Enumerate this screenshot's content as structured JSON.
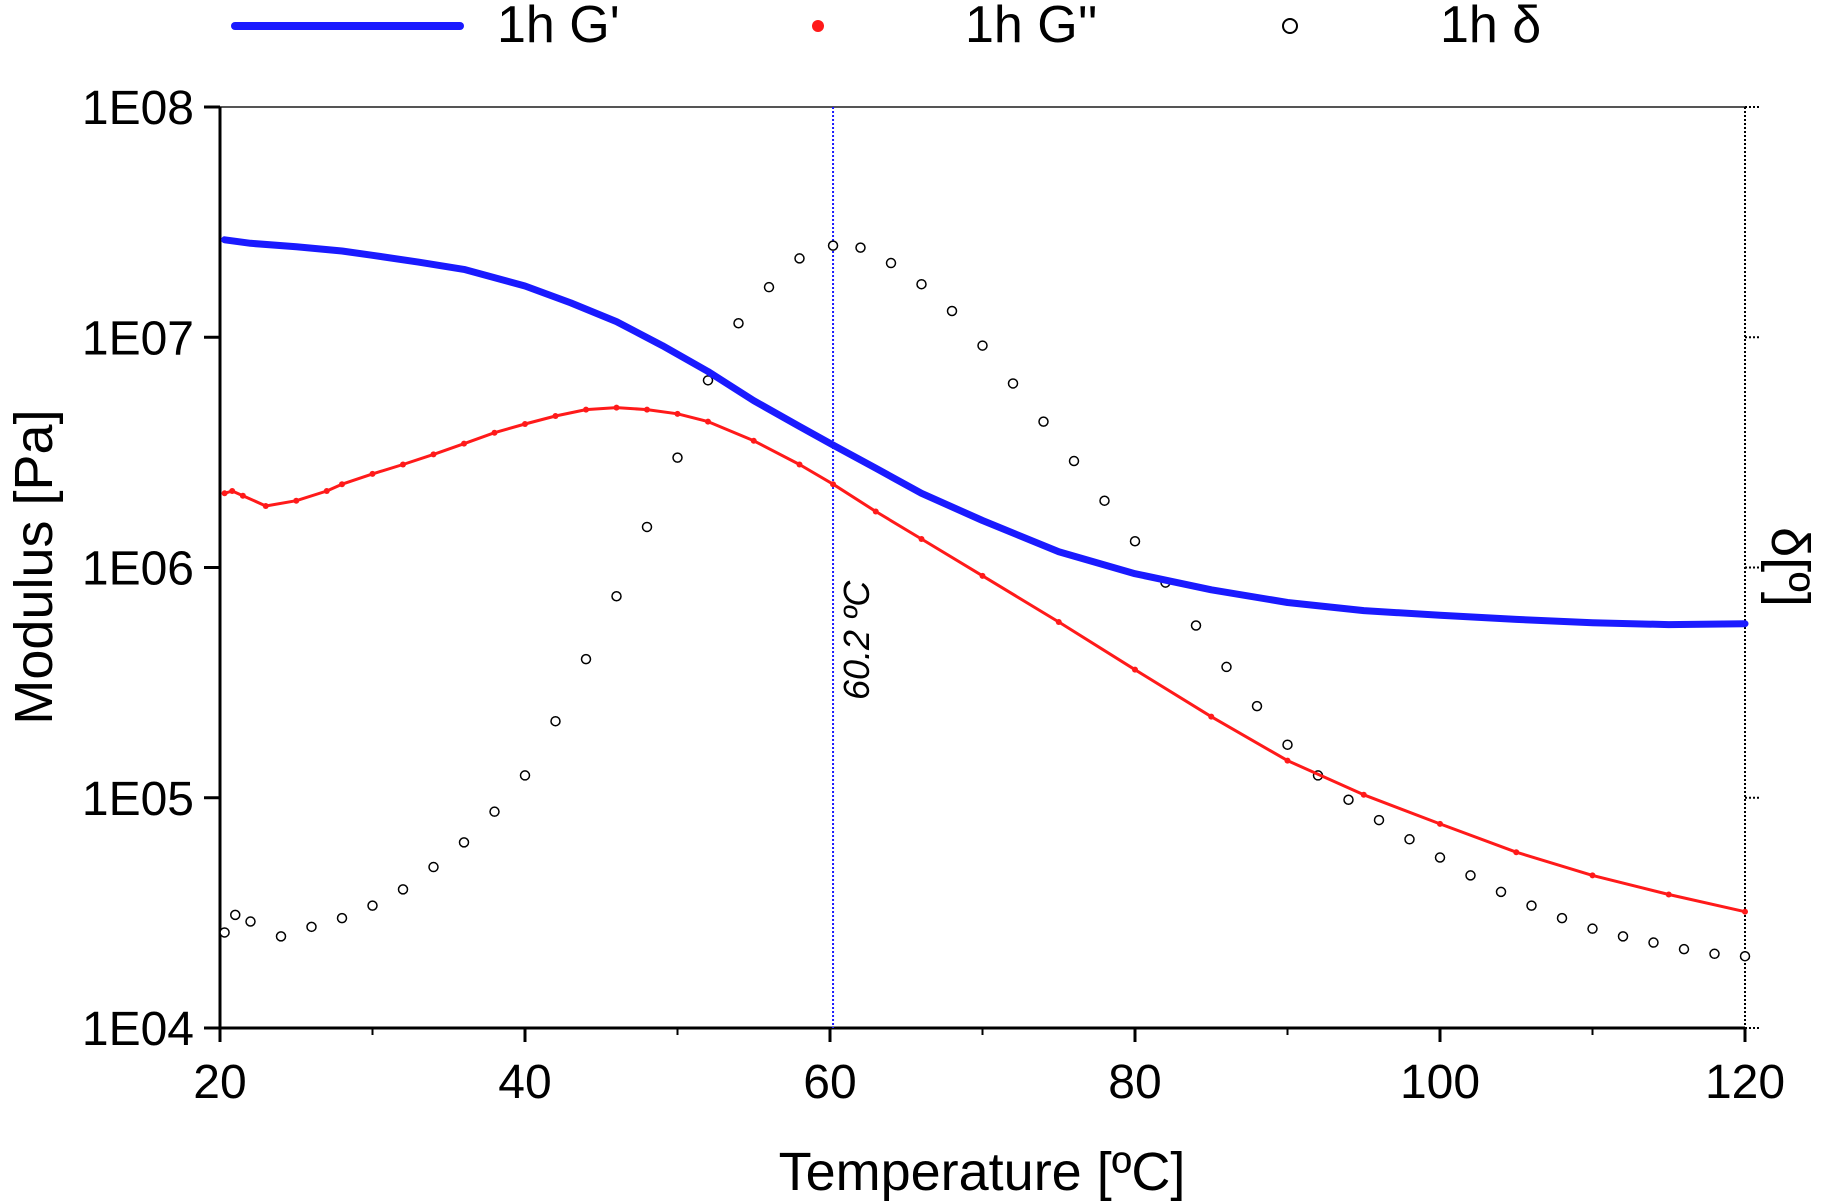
{
  "chart_data": {
    "type": "line",
    "xlabel": "Temperature [ºC]",
    "ylabel": "Modulus [Pa]",
    "y2label": "δ[º]",
    "xlim": [
      20,
      120
    ],
    "ylim": [
      10000,
      100000000
    ],
    "yscale": "log",
    "x_ticks": [
      20,
      40,
      60,
      80,
      100,
      120
    ],
    "x_tick_labels": [
      "20",
      "40",
      "60",
      "80",
      "100",
      "120"
    ],
    "y_ticks": [
      10000,
      100000,
      1000000,
      10000000,
      100000000
    ],
    "y_tick_labels": [
      "1E04",
      "1E05",
      "1E06",
      "1E07",
      "1E08"
    ],
    "y2_tick_labels": [],
    "grid": false,
    "legend_position": "top",
    "annotation": {
      "text": "60.2 ºC",
      "x": 60.2
    },
    "series": [
      {
        "name": "1h G'",
        "style": "line",
        "color": "#1a1aff",
        "x": [
          20.3,
          22,
          25,
          28,
          30,
          33,
          36,
          40,
          43,
          46,
          49,
          52,
          55,
          58,
          60.2,
          63,
          66,
          70,
          75,
          80,
          85,
          90,
          95,
          100,
          105,
          110,
          115,
          120
        ],
        "y": [
          26500000,
          25600000,
          24700000,
          23700000,
          22700000,
          21200000,
          19700000,
          16700000,
          14100000,
          11700000,
          9200000,
          7100000,
          5300000,
          4100000,
          3400000,
          2700000,
          2100000,
          1600000,
          1170000,
          940000,
          800000,
          705000,
          650000,
          620000,
          595000,
          575000,
          565000,
          570000
        ]
      },
      {
        "name": "1h G''",
        "style": "dots",
        "color": "#ff1a1a",
        "x": [
          20.3,
          20.8,
          21.5,
          23,
          25,
          27,
          28,
          30,
          32,
          34,
          36,
          38,
          40,
          42,
          44,
          46,
          48,
          50,
          52,
          55,
          58,
          60.2,
          63,
          66,
          70,
          75,
          80,
          85,
          90,
          95,
          100,
          105,
          110,
          115,
          120
        ],
        "y": [
          2100000,
          2150000,
          2050000,
          1850000,
          1950000,
          2150000,
          2300000,
          2550000,
          2800000,
          3100000,
          3450000,
          3850000,
          4200000,
          4550000,
          4850000,
          4950000,
          4850000,
          4650000,
          4300000,
          3550000,
          2800000,
          2300000,
          1750000,
          1330000,
          920000,
          580000,
          360000,
          225000,
          145000,
          103000,
          77000,
          58000,
          46000,
          38000,
          32000
        ]
      },
      {
        "name": "1h  δ",
        "style": "circles",
        "color": "#000000",
        "x": [
          20.3,
          21,
          22,
          24,
          26,
          28,
          30,
          32,
          34,
          36,
          38,
          40,
          42,
          44,
          46,
          48,
          50,
          52,
          54,
          56,
          58,
          60.2,
          62,
          64,
          66,
          68,
          70,
          72,
          74,
          76,
          78,
          80,
          82,
          84,
          86,
          88,
          90,
          92,
          94,
          96,
          98,
          100,
          102,
          104,
          106,
          108,
          110,
          112,
          114,
          116,
          118,
          120
        ],
        "y": [
          26000,
          31000,
          29000,
          25000,
          27500,
          30000,
          34000,
          40000,
          50000,
          64000,
          87000,
          125000,
          215000,
          400000,
          750000,
          1500000,
          3000000,
          6500000,
          11500000,
          16500000,
          22000000,
          25000000,
          24500000,
          21000000,
          17000000,
          13000000,
          9200000,
          6300000,
          4300000,
          2900000,
          1950000,
          1300000,
          860000,
          560000,
          370000,
          250000,
          170000,
          125000,
          98000,
          80000,
          66000,
          55000,
          46000,
          39000,
          34000,
          30000,
          27000,
          25000,
          23500,
          22000,
          21000,
          20500
        ]
      }
    ]
  }
}
